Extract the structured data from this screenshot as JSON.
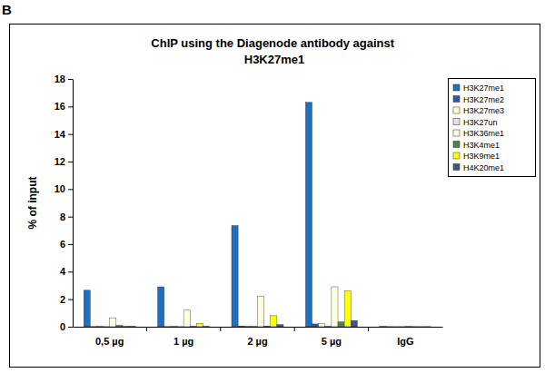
{
  "chart_data": {
    "type": "bar",
    "title": "ChIP using the Diagenode antibody against H3K27me1",
    "annotations": [
      "B"
    ],
    "y_label": "% of input",
    "categories": [
      "0,5 µg",
      "1 µg",
      "2 µg",
      "5 µg",
      "IgG"
    ],
    "series": [
      {
        "name": "H3K27me1",
        "color": "#1f6fc1",
        "values": [
          2.65,
          2.9,
          7.35,
          16.3,
          0.02
        ]
      },
      {
        "name": "H3K27me2",
        "color": "#2b5d9e",
        "values": [
          0.01,
          0.01,
          0.05,
          0.2,
          0.01
        ]
      },
      {
        "name": "H3K27me3",
        "color": "#ffffcc",
        "values": [
          0.02,
          0.02,
          0.05,
          0.25,
          0.01
        ]
      },
      {
        "name": "H3K27un",
        "color": "#e0e0e0",
        "values": [
          0.01,
          0.01,
          0.03,
          0.05,
          0.01
        ]
      },
      {
        "name": "H3K36me1",
        "color": "#fffde0",
        "values": [
          0.65,
          1.2,
          2.2,
          2.9,
          0.02
        ]
      },
      {
        "name": "H3K4me1",
        "color": "#4e8542",
        "values": [
          0.1,
          0.03,
          0.05,
          0.35,
          0.01
        ]
      },
      {
        "name": "H3K9me1",
        "color": "#ffff00",
        "values": [
          0.05,
          0.25,
          0.8,
          2.6,
          0.01
        ]
      },
      {
        "name": "H4K20me1",
        "color": "#3c5a7a",
        "values": [
          0.02,
          0.02,
          0.15,
          0.45,
          0.01
        ]
      }
    ],
    "ylim": [
      0,
      18
    ],
    "yticks": [
      0,
      2,
      4,
      6,
      8,
      10,
      12,
      14,
      16,
      18
    ],
    "grid": false,
    "legend": "right"
  }
}
